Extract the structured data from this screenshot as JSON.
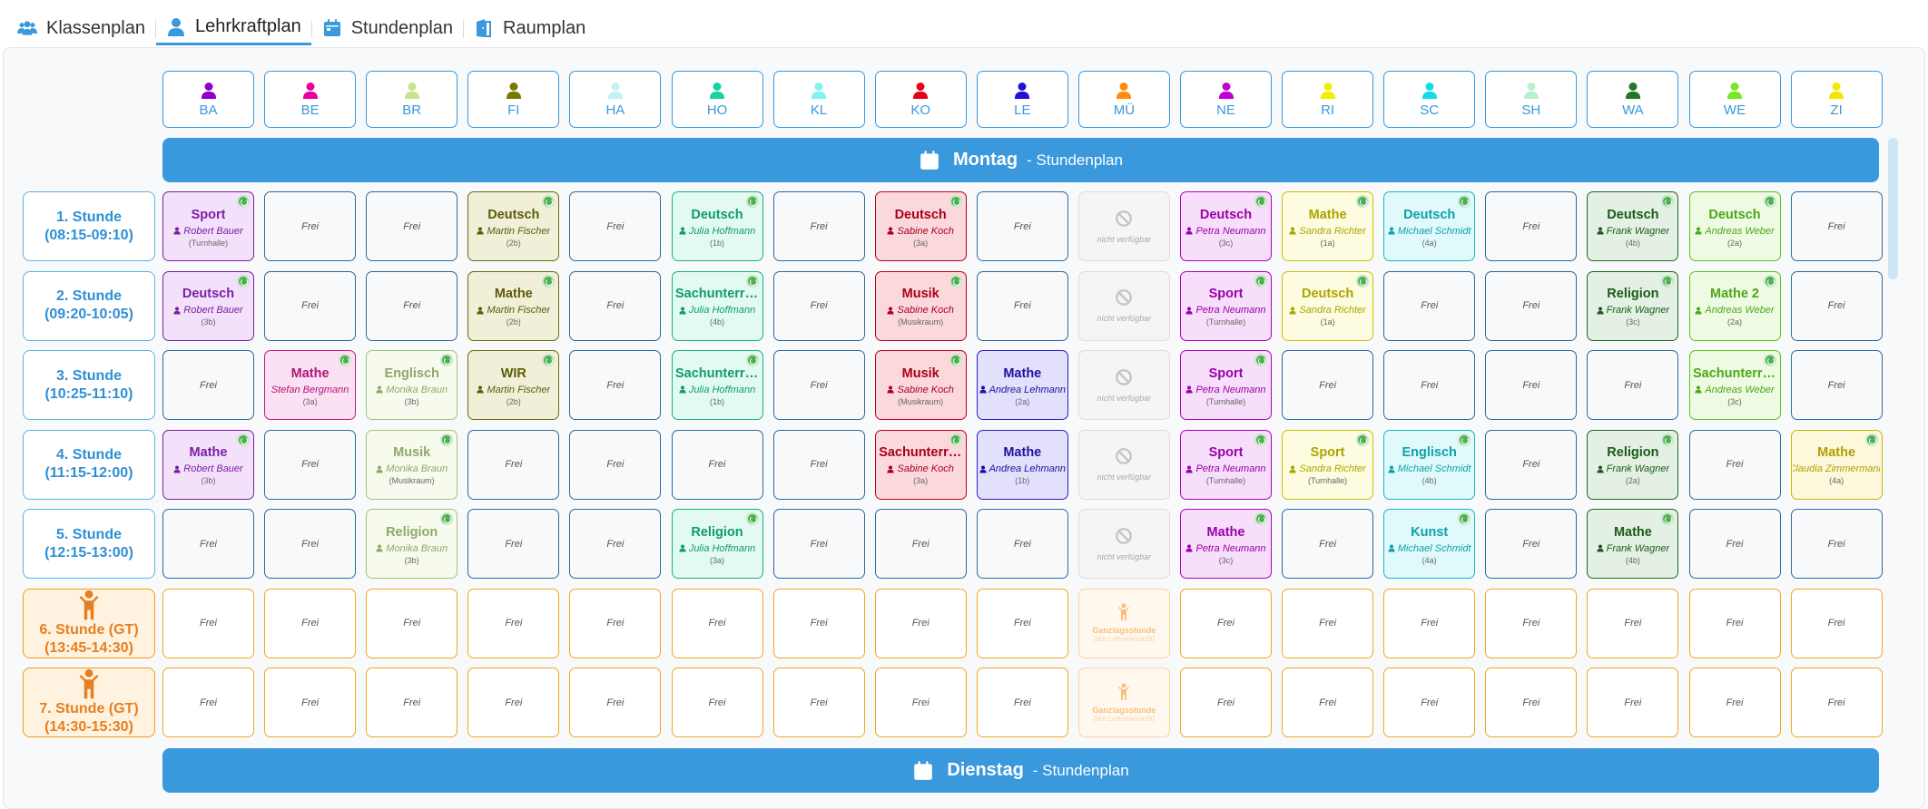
{
  "tabs": [
    {
      "label": "Klassenplan",
      "icon": "users-icon",
      "active": false
    },
    {
      "label": "Lehrkraftplan",
      "icon": "user-icon",
      "active": true
    },
    {
      "label": "Stundenplan",
      "icon": "calendar-icon",
      "active": false
    },
    {
      "label": "Raumplan",
      "icon": "door-icon",
      "active": false
    }
  ],
  "teachers": [
    {
      "code": "BA",
      "color": "#8e00c9"
    },
    {
      "code": "BE",
      "color": "#ea00a2"
    },
    {
      "code": "BR",
      "color": "#c6e48a"
    },
    {
      "code": "FI",
      "color": "#7a7700"
    },
    {
      "code": "HA",
      "color": "#c6f0f2"
    },
    {
      "code": "HO",
      "color": "#19d3a0"
    },
    {
      "code": "KL",
      "color": "#7ff3f0"
    },
    {
      "code": "KO",
      "color": "#e8001a"
    },
    {
      "code": "LE",
      "color": "#1e10d6"
    },
    {
      "code": "MÜ",
      "color": "#ff8c0a"
    },
    {
      "code": "NE",
      "color": "#c000d0"
    },
    {
      "code": "RI",
      "color": "#f2ee00"
    },
    {
      "code": "SC",
      "color": "#10dde8"
    },
    {
      "code": "SH",
      "color": "#b9f0d2"
    },
    {
      "code": "WA",
      "color": "#1f7a1f"
    },
    {
      "code": "WE",
      "color": "#74e820"
    },
    {
      "code": "ZI",
      "color": "#f5e600"
    }
  ],
  "days": [
    {
      "name": "Montag",
      "suffix": "- Stundenplan"
    },
    {
      "name": "Dienstag",
      "suffix": "- Stundenplan"
    }
  ],
  "periods": [
    {
      "label": "1. Stunde",
      "time": "(08:15-09:10)",
      "gt": false
    },
    {
      "label": "2. Stunde",
      "time": "(09:20-10:05)",
      "gt": false
    },
    {
      "label": "3. Stunde",
      "time": "(10:25-11:10)",
      "gt": false
    },
    {
      "label": "4. Stunde",
      "time": "(11:15-12:00)",
      "gt": false
    },
    {
      "label": "5. Stunde",
      "time": "(12:15-13:00)",
      "gt": false
    },
    {
      "label": "6. Stunde (GT)",
      "time": "(13:45-14:30)",
      "gt": true
    },
    {
      "label": "7. Stunde (GT)",
      "time": "(14:30-15:30)",
      "gt": true
    }
  ],
  "labels": {
    "frei": "Frei",
    "not_available": "nicht verfügbar",
    "gt_title": "Ganztagsstunde",
    "gt_sub": "(nur Lehreransicht)"
  },
  "styles": {
    "BA": {
      "border": "#7b1fa2",
      "bg": "#f3e0fb",
      "fg": "#7b1fa2"
    },
    "BE": {
      "border": "#c2187a",
      "bg": "#fce0f3",
      "fg": "#b0157a"
    },
    "BR": {
      "border": "#a4c07a",
      "bg": "#f6fbee",
      "fg": "#8fa86a"
    },
    "FI": {
      "border": "#6d6a10",
      "bg": "#f0f0d8",
      "fg": "#5d5a08"
    },
    "HO": {
      "border": "#16b085",
      "bg": "#e2faf2",
      "fg": "#119a72"
    },
    "KO": {
      "border": "#c0001a",
      "bg": "#fbd8dc",
      "fg": "#a8001a"
    },
    "LE": {
      "border": "#2b1cc8",
      "bg": "#e2e0fb",
      "fg": "#1e10a0"
    },
    "NE": {
      "border": "#b000c0",
      "bg": "#f7defa",
      "fg": "#9a00a8"
    },
    "RI": {
      "border": "#c8c400",
      "bg": "#fdfce0",
      "fg": "#aaa500"
    },
    "SC": {
      "border": "#12b8c2",
      "bg": "#e0fafb",
      "fg": "#0ea0aa"
    },
    "WA": {
      "border": "#1f6a1f",
      "bg": "#e4f0e4",
      "fg": "#185c18"
    },
    "WE": {
      "border": "#5cc220",
      "bg": "#eefbe2",
      "fg": "#4aa818"
    },
    "ZI": {
      "border": "#c8b800",
      "bg": "#fdf8dc",
      "fg": "#b0a000"
    }
  },
  "schedule": {
    "Montag": [
      [
        {
          "t": "BA",
          "subject": "Sport",
          "teacher": "Robert Bauer",
          "room": "(Turnhalle)"
        },
        {
          "type": "frei"
        },
        {
          "type": "frei"
        },
        {
          "t": "FI",
          "subject": "Deutsch",
          "teacher": "Martin Fischer",
          "room": "(2b)"
        },
        {
          "type": "frei"
        },
        {
          "t": "HO",
          "subject": "Deutsch",
          "teacher": "Julia Hoffmann",
          "room": "(1b)"
        },
        {
          "type": "frei"
        },
        {
          "t": "KO",
          "subject": "Deutsch",
          "teacher": "Sabine Koch",
          "room": "(3a)"
        },
        {
          "type": "frei"
        },
        {
          "type": "na"
        },
        {
          "t": "NE",
          "subject": "Deutsch",
          "teacher": "Petra Neumann",
          "room": "(3c)"
        },
        {
          "t": "RI",
          "subject": "Mathe",
          "teacher": "Sandra Richter",
          "room": "(1a)"
        },
        {
          "t": "SC",
          "subject": "Deutsch",
          "teacher": "Michael Schmidt",
          "room": "(4a)"
        },
        {
          "type": "frei"
        },
        {
          "t": "WA",
          "subject": "Deutsch",
          "teacher": "Frank Wagner",
          "room": "(4b)"
        },
        {
          "t": "WE",
          "subject": "Deutsch",
          "teacher": "Andreas Weber",
          "room": "(2a)"
        },
        {
          "type": "frei"
        }
      ],
      [
        {
          "t": "BA",
          "subject": "Deutsch",
          "teacher": "Robert Bauer",
          "room": "(3b)"
        },
        {
          "type": "frei"
        },
        {
          "type": "frei"
        },
        {
          "t": "FI",
          "subject": "Mathe",
          "teacher": "Martin Fischer",
          "room": "(2b)"
        },
        {
          "type": "frei"
        },
        {
          "t": "HO",
          "subject": "Sachunterricht",
          "teacher": "Julia Hoffmann",
          "room": "(4b)"
        },
        {
          "type": "frei"
        },
        {
          "t": "KO",
          "subject": "Musik",
          "teacher": "Sabine Koch",
          "room": "(Musikraum)"
        },
        {
          "type": "frei"
        },
        {
          "type": "na"
        },
        {
          "t": "NE",
          "subject": "Sport",
          "teacher": "Petra Neumann",
          "room": "(Turnhalle)"
        },
        {
          "t": "RI",
          "subject": "Deutsch",
          "teacher": "Sandra Richter",
          "room": "(1a)"
        },
        {
          "type": "frei"
        },
        {
          "type": "frei"
        },
        {
          "t": "WA",
          "subject": "Religion",
          "teacher": "Frank Wagner",
          "room": "(3c)"
        },
        {
          "t": "WE",
          "subject": "Mathe 2",
          "teacher": "Andreas Weber",
          "room": "(2a)"
        },
        {
          "type": "frei"
        }
      ],
      [
        {
          "type": "frei"
        },
        {
          "t": "BE",
          "subject": "Mathe",
          "teacher": "Stefan Bergmann",
          "room": "(3a)",
          "noicon": true
        },
        {
          "t": "BR",
          "subject": "Englisch",
          "teacher": "Monika Braun",
          "room": "(3b)"
        },
        {
          "t": "FI",
          "subject": "WIR",
          "teacher": "Martin Fischer",
          "room": "(2b)"
        },
        {
          "type": "frei"
        },
        {
          "t": "HO",
          "subject": "Sachunterricht",
          "teacher": "Julia Hoffmann",
          "room": "(1b)"
        },
        {
          "type": "frei"
        },
        {
          "t": "KO",
          "subject": "Musik",
          "teacher": "Sabine Koch",
          "room": "(Musikraum)"
        },
        {
          "t": "LE",
          "subject": "Mathe",
          "teacher": "Andrea Lehmann",
          "room": "(2a)",
          "nodot": true
        },
        {
          "type": "na"
        },
        {
          "t": "NE",
          "subject": "Sport",
          "teacher": "Petra Neumann",
          "room": "(Turnhalle)"
        },
        {
          "type": "frei"
        },
        {
          "type": "frei"
        },
        {
          "type": "frei"
        },
        {
          "type": "frei"
        },
        {
          "t": "WE",
          "subject": "Sachunterricht",
          "teacher": "Andreas Weber",
          "room": "(3c)"
        },
        {
          "type": "frei"
        }
      ],
      [
        {
          "t": "BA",
          "subject": "Mathe",
          "teacher": "Robert Bauer",
          "room": "(3b)"
        },
        {
          "type": "frei"
        },
        {
          "t": "BR",
          "subject": "Musik",
          "teacher": "Monika Braun",
          "room": "(Musikraum)"
        },
        {
          "type": "frei"
        },
        {
          "type": "frei"
        },
        {
          "type": "frei"
        },
        {
          "type": "frei"
        },
        {
          "t": "KO",
          "subject": "Sachunterricht",
          "teacher": "Sabine Koch",
          "room": "(3a)"
        },
        {
          "t": "LE",
          "subject": "Mathe",
          "teacher": "Andrea Lehmann",
          "room": "(1b)",
          "nodot": true
        },
        {
          "type": "na"
        },
        {
          "t": "NE",
          "subject": "Sport",
          "teacher": "Petra Neumann",
          "room": "(Turnhalle)"
        },
        {
          "t": "RI",
          "subject": "Sport",
          "teacher": "Sandra Richter",
          "room": "(Turnhalle)"
        },
        {
          "t": "SC",
          "subject": "Englisch",
          "teacher": "Michael Schmidt",
          "room": "(4b)"
        },
        {
          "type": "frei"
        },
        {
          "t": "WA",
          "subject": "Religion",
          "teacher": "Frank Wagner",
          "room": "(2a)"
        },
        {
          "type": "frei"
        },
        {
          "t": "ZI",
          "subject": "Mathe",
          "teacher": "Claudia Zimmermann",
          "room": "(4a)",
          "noicon": true
        }
      ],
      [
        {
          "type": "frei"
        },
        {
          "type": "frei"
        },
        {
          "t": "BR",
          "subject": "Religion",
          "teacher": "Monika Braun",
          "room": "(3b)"
        },
        {
          "type": "frei"
        },
        {
          "type": "frei"
        },
        {
          "t": "HO",
          "subject": "Religion",
          "teacher": "Julia Hoffmann",
          "room": "(3a)"
        },
        {
          "type": "frei"
        },
        {
          "type": "frei"
        },
        {
          "type": "frei"
        },
        {
          "type": "na"
        },
        {
          "t": "NE",
          "subject": "Mathe",
          "teacher": "Petra Neumann",
          "room": "(3c)"
        },
        {
          "type": "frei"
        },
        {
          "t": "SC",
          "subject": "Kunst",
          "teacher": "Michael Schmidt",
          "room": "(4a)"
        },
        {
          "type": "frei"
        },
        {
          "t": "WA",
          "subject": "Mathe",
          "teacher": "Frank Wagner",
          "room": "(4b)"
        },
        {
          "type": "frei"
        },
        {
          "type": "frei"
        }
      ]
    ]
  }
}
